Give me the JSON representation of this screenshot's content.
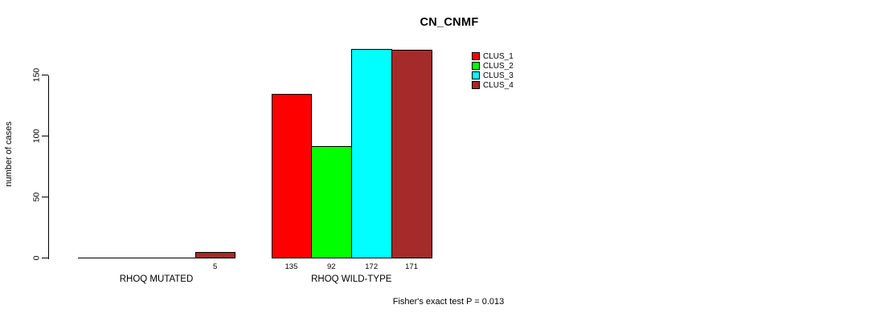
{
  "chart_data": {
    "type": "bar",
    "title": "CN_CNMF",
    "ylabel": "number of cases",
    "xlabel": "",
    "ylim": [
      0,
      172
    ],
    "yticks": [
      0,
      50,
      100,
      150
    ],
    "grid": false,
    "legend_position": "top-right",
    "categories": [
      "RHOQ MUTATED",
      "RHOQ WILD-TYPE"
    ],
    "series": [
      {
        "name": "CLUS_1",
        "color": "#FF0000",
        "values": [
          0,
          135
        ]
      },
      {
        "name": "CLUS_2",
        "color": "#00FF00",
        "values": [
          0,
          92
        ]
      },
      {
        "name": "CLUS_3",
        "color": "#00FFFF",
        "values": [
          0,
          172
        ]
      },
      {
        "name": "CLUS_4",
        "color": "#A52A2A",
        "values": [
          5,
          171
        ]
      }
    ],
    "value_labels": [
      [
        "",
        "",
        "",
        "5"
      ],
      [
        "135",
        "92",
        "172",
        "171"
      ]
    ],
    "annotation": "Fisher's exact test P = 0.013",
    "axis_color": "#000000",
    "text_color": "#000000"
  }
}
